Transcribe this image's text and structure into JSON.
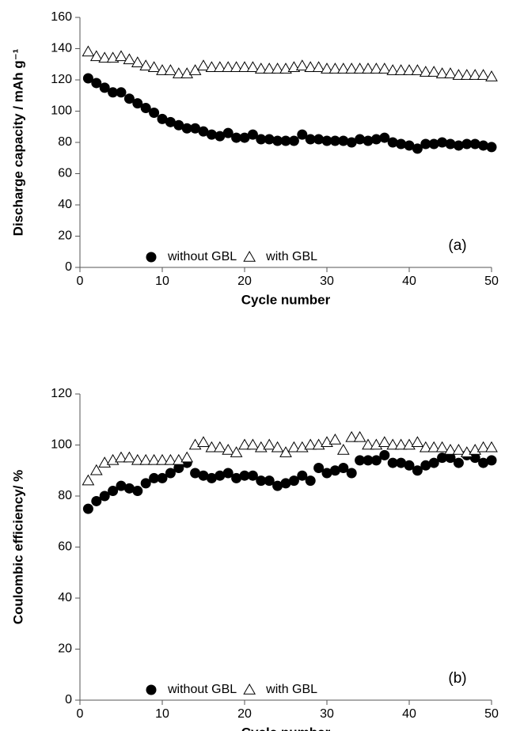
{
  "chart_data": [
    {
      "type": "scatter",
      "ylabel": "Discharge capacity / mAh g⁻¹",
      "xlabel": "Cycle number",
      "annotation": "(a)",
      "x": [
        1,
        2,
        3,
        4,
        5,
        6,
        7,
        8,
        9,
        10,
        11,
        12,
        13,
        14,
        15,
        16,
        17,
        18,
        19,
        20,
        21,
        22,
        23,
        24,
        25,
        26,
        27,
        28,
        29,
        30,
        31,
        32,
        33,
        34,
        35,
        36,
        37,
        38,
        39,
        40,
        41,
        42,
        43,
        44,
        45,
        46,
        47,
        48,
        49,
        50
      ],
      "xlim": [
        0,
        50
      ],
      "xticks": [
        0,
        10,
        20,
        30,
        40,
        50
      ],
      "ylim": [
        0,
        160
      ],
      "yticks": [
        0,
        20,
        40,
        60,
        80,
        100,
        120,
        140,
        160
      ],
      "series": [
        {
          "name": "without GBL",
          "marker": "circle",
          "color": "#000000",
          "values": [
            121,
            118,
            115,
            112,
            112,
            108,
            105,
            102,
            99,
            95,
            93,
            91,
            89,
            89,
            87,
            85,
            84,
            86,
            83,
            83,
            85,
            82,
            82,
            81,
            81,
            81,
            85,
            82,
            82,
            81,
            81,
            81,
            80,
            82,
            81,
            82,
            83,
            80,
            79,
            78,
            76,
            79,
            79,
            80,
            79,
            78,
            79,
            79,
            78,
            77
          ]
        },
        {
          "name": "with GBL",
          "marker": "triangle",
          "color": "#ffffff",
          "values": [
            138,
            135,
            134,
            134,
            135,
            133,
            131,
            129,
            128,
            126,
            126,
            124,
            124,
            126,
            129,
            128,
            128,
            128,
            128,
            128,
            128,
            127,
            127,
            127,
            127,
            128,
            129,
            128,
            128,
            127,
            127,
            127,
            127,
            127,
            127,
            127,
            127,
            126,
            126,
            126,
            126,
            125,
            125,
            124,
            124,
            123,
            123,
            123,
            123,
            122
          ]
        }
      ]
    },
    {
      "type": "scatter",
      "ylabel": "Coulombic efficiency/ %",
      "xlabel": "Cycle number",
      "annotation": "(b)",
      "x": [
        1,
        2,
        3,
        4,
        5,
        6,
        7,
        8,
        9,
        10,
        11,
        12,
        13,
        14,
        15,
        16,
        17,
        18,
        19,
        20,
        21,
        22,
        23,
        24,
        25,
        26,
        27,
        28,
        29,
        30,
        31,
        32,
        33,
        34,
        35,
        36,
        37,
        38,
        39,
        40,
        41,
        42,
        43,
        44,
        45,
        46,
        47,
        48,
        49,
        50
      ],
      "xlim": [
        0,
        50
      ],
      "xticks": [
        0,
        10,
        20,
        30,
        40,
        50
      ],
      "ylim": [
        0,
        120
      ],
      "yticks": [
        0,
        20,
        40,
        60,
        80,
        100,
        120
      ],
      "series": [
        {
          "name": "without GBL",
          "marker": "circle",
          "color": "#000000",
          "values": [
            75,
            78,
            80,
            82,
            84,
            83,
            82,
            85,
            87,
            87,
            89,
            91,
            93,
            89,
            88,
            87,
            88,
            89,
            87,
            88,
            88,
            86,
            86,
            84,
            85,
            86,
            88,
            86,
            91,
            89,
            90,
            91,
            89,
            94,
            94,
            94,
            96,
            93,
            93,
            92,
            90,
            92,
            93,
            95,
            95,
            93,
            96,
            95,
            93,
            94
          ]
        },
        {
          "name": "with GBL",
          "marker": "triangle",
          "color": "#ffffff",
          "values": [
            86,
            90,
            93,
            94,
            95,
            95,
            94,
            94,
            94,
            94,
            94,
            94,
            95,
            100,
            101,
            99,
            99,
            98,
            97,
            100,
            100,
            99,
            100,
            99,
            97,
            99,
            99,
            100,
            100,
            101,
            102,
            98,
            103,
            103,
            100,
            100,
            101,
            100,
            100,
            100,
            101,
            99,
            99,
            99,
            98,
            98,
            97,
            98,
            99,
            99
          ]
        }
      ]
    }
  ]
}
